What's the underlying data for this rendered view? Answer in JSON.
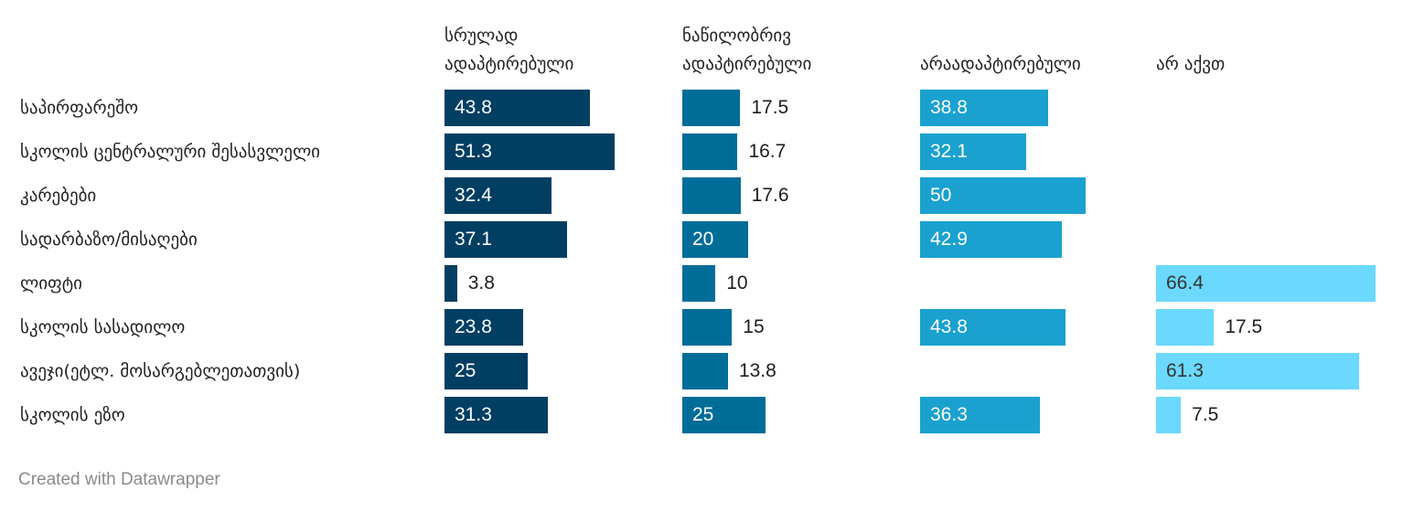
{
  "chart_data": {
    "type": "bar",
    "orientation": "horizontal",
    "layout": "split-columns",
    "categories": [
      "საპირფარეშო",
      "სკოლის ცენტრალური შესასვლელი",
      "კარებები",
      "სადარბაზო/მისაღები",
      "ლიფტი",
      "სკოლის სასადილო",
      "ავეჯი(ეტლ. მოსარგებლეთათვის)",
      "სკოლის ეზო"
    ],
    "series": [
      {
        "name": "სრულად ადაპტირებული",
        "name_lines": [
          "სრულად",
          "ადაპტირებული"
        ],
        "color": "#003e62",
        "label_inside_color": "#ffffff",
        "values": [
          43.8,
          51.3,
          32.4,
          37.1,
          3.8,
          23.8,
          25,
          31.3
        ]
      },
      {
        "name": "ნაწილობრივ ადაპტირებული",
        "name_lines": [
          "ნაწილობრივ",
          "ადაპტირებული"
        ],
        "color": "#006d99",
        "label_inside_color": "#ffffff",
        "values": [
          17.5,
          16.7,
          17.6,
          20,
          10,
          15,
          13.8,
          25
        ]
      },
      {
        "name": "არაადაპტირებული",
        "name_lines": [
          "არაადაპტირებული"
        ],
        "color": "#1aa1cf",
        "label_inside_color": "#ffffff",
        "values": [
          38.8,
          32.1,
          50,
          42.9,
          null,
          43.8,
          null,
          36.3
        ]
      },
      {
        "name": "არ აქვთ",
        "name_lines": [
          "არ აქვთ"
        ],
        "color": "#6bd8fd",
        "label_inside_color": "#333333",
        "values": [
          null,
          null,
          null,
          null,
          66.4,
          17.5,
          61.3,
          7.5
        ]
      }
    ],
    "value_labels": true,
    "grid": false,
    "legend": "none"
  },
  "footer": {
    "credit": "Created with Datawrapper"
  }
}
